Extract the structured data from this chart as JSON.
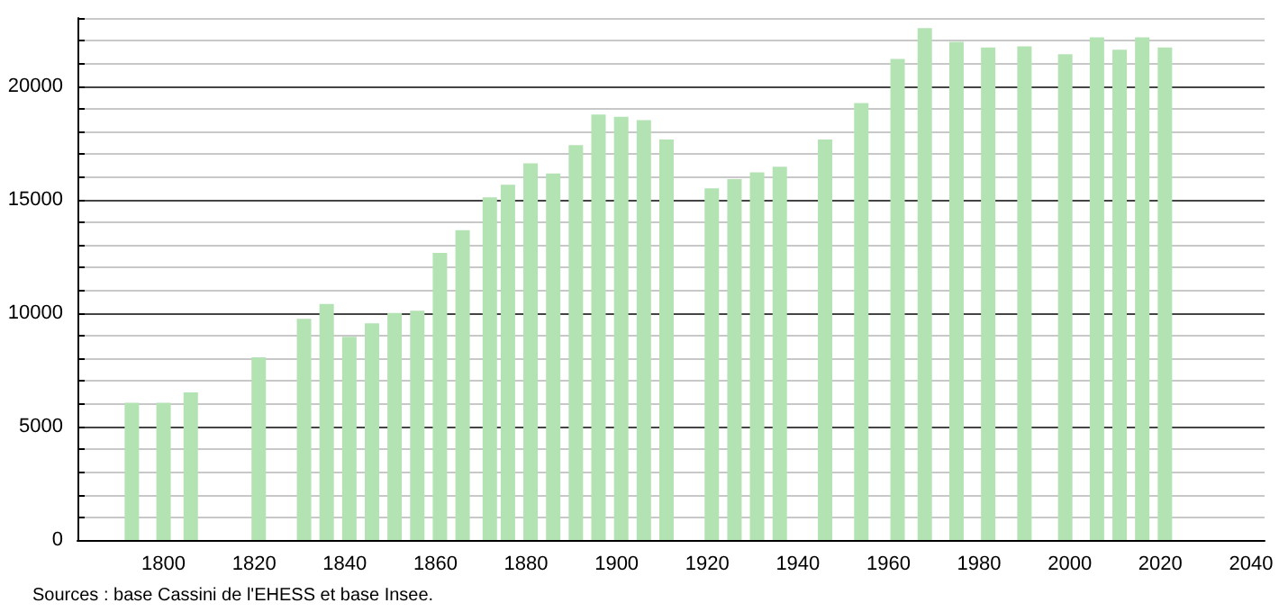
{
  "chart_data": {
    "type": "bar",
    "x": [
      1793,
      1800,
      1806,
      1821,
      1831,
      1836,
      1841,
      1846,
      1851,
      1856,
      1861,
      1866,
      1872,
      1876,
      1881,
      1886,
      1891,
      1896,
      1901,
      1906,
      1911,
      1921,
      1926,
      1931,
      1936,
      1946,
      1954,
      1962,
      1968,
      1975,
      1982,
      1990,
      1999,
      2006,
      2011,
      2016,
      2021
    ],
    "values": [
      6050,
      6050,
      6500,
      8050,
      9750,
      10400,
      8950,
      9550,
      10000,
      10100,
      12650,
      13650,
      15100,
      15650,
      16600,
      16150,
      17400,
      18750,
      18650,
      18500,
      17650,
      15500,
      15900,
      16200,
      16450,
      17650,
      19250,
      21200,
      22550,
      21950,
      21700,
      21750,
      21400,
      22150,
      21600,
      22150,
      21700
    ],
    "color": "#b3e3b3",
    "xlim": [
      1781,
      2043
    ],
    "xticks": [
      1800,
      1820,
      1840,
      1860,
      1880,
      1900,
      1920,
      1940,
      1960,
      1980,
      2000,
      2020,
      2040
    ],
    "ylim": [
      0,
      23000
    ],
    "yticks": [
      0,
      {
        "value": 1000,
        "label": null
      },
      {
        "value": 2000,
        "label": null
      },
      {
        "value": 3000,
        "label": null
      },
      {
        "value": 4000,
        "label": null
      },
      5000,
      {
        "value": 6000,
        "label": null
      },
      {
        "value": 7000,
        "label": null
      },
      {
        "value": 8000,
        "label": null
      },
      {
        "value": 9000,
        "label": null
      },
      10000,
      {
        "value": 11000,
        "label": null
      },
      {
        "value": 12000,
        "label": null
      },
      {
        "value": 13000,
        "label": null
      },
      {
        "value": 14000,
        "label": null
      },
      15000,
      {
        "value": 16000,
        "label": null
      },
      {
        "value": 17000,
        "label": null
      },
      {
        "value": 18000,
        "label": null
      },
      {
        "value": 19000,
        "label": null
      },
      20000,
      {
        "value": 21000,
        "label": null
      },
      {
        "value": 22000,
        "label": null
      },
      {
        "value": 23000,
        "label": null
      }
    ],
    "grid": "y",
    "annotations": [
      "Sources : base Cassini de l'EHESS et base Insee."
    ]
  }
}
